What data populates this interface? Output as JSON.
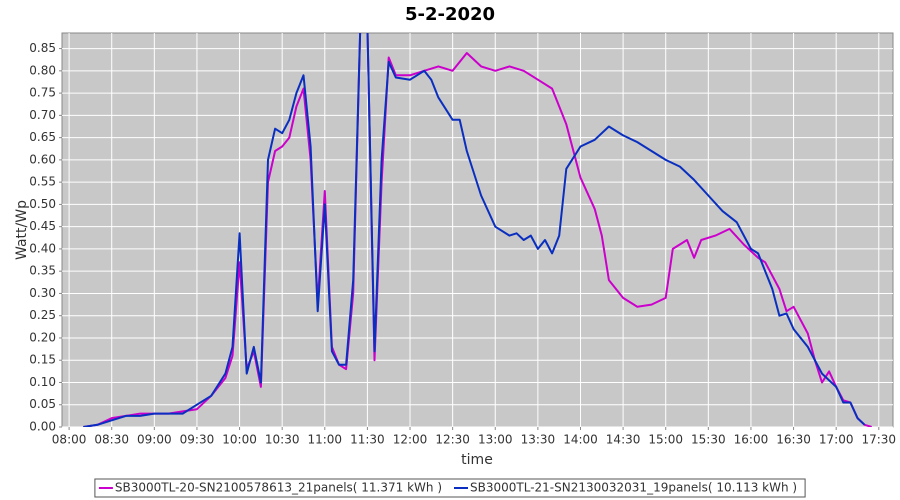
{
  "chart_data": {
    "type": "line",
    "title": "5-2-2020",
    "x_label": "time",
    "y_label": "Watt/Wp",
    "xlim": [
      "07:55",
      "17:40"
    ],
    "xticks": [
      "08:00",
      "08:30",
      "09:00",
      "09:30",
      "10:00",
      "10:30",
      "11:00",
      "11:30",
      "12:00",
      "12:30",
      "13:00",
      "13:30",
      "14:00",
      "14:30",
      "15:00",
      "15:30",
      "16:00",
      "16:30",
      "17:00",
      "17:30"
    ],
    "ylim": [
      0,
      0.885
    ],
    "yticks": [
      {
        "value": 0,
        "label": "0.00"
      },
      {
        "value": 0.05,
        "label": "0.05"
      },
      {
        "value": 0.1,
        "label": "0.10"
      },
      {
        "value": 0.15,
        "label": "0.15"
      },
      {
        "value": 0.2,
        "label": "0.20"
      },
      {
        "value": 0.25,
        "label": "0.25"
      },
      {
        "value": 0.3,
        "label": "0.30"
      },
      {
        "value": 0.35,
        "label": "0.35"
      },
      {
        "value": 0.4,
        "label": "0.40"
      },
      {
        "value": 0.45,
        "label": "0.45"
      },
      {
        "value": 0.5,
        "label": "0.50"
      },
      {
        "value": 0.55,
        "label": "0.55"
      },
      {
        "value": 0.6,
        "label": "0.60"
      },
      {
        "value": 0.65,
        "label": "0.65"
      },
      {
        "value": 0.7,
        "label": "0.70"
      },
      {
        "value": 0.75,
        "label": "0.75"
      },
      {
        "value": 0.8,
        "label": "0.80"
      },
      {
        "value": 0.85,
        "label": "0.85"
      }
    ],
    "grid": true,
    "legend": "bottom",
    "series": [
      {
        "name": "SB3000TL-20-SN2100578613_21panels( 11.371 kWh )",
        "color": "#cc00cc",
        "x": [
          "08:10",
          "08:20",
          "08:30",
          "08:40",
          "08:50",
          "09:00",
          "09:10",
          "09:20",
          "09:30",
          "09:40",
          "09:50",
          "09:55",
          "10:00",
          "10:05",
          "10:10",
          "10:15",
          "10:20",
          "10:25",
          "10:30",
          "10:35",
          "10:40",
          "10:45",
          "10:50",
          "10:55",
          "11:00",
          "11:05",
          "11:10",
          "11:15",
          "11:20",
          "11:25",
          "11:30",
          "11:35",
          "11:40",
          "11:45",
          "11:50",
          "12:00",
          "12:10",
          "12:20",
          "12:30",
          "12:40",
          "12:50",
          "13:00",
          "13:10",
          "13:20",
          "13:30",
          "13:40",
          "13:50",
          "14:00",
          "14:10",
          "14:15",
          "14:20",
          "14:30",
          "14:40",
          "14:50",
          "15:00",
          "15:05",
          "15:15",
          "15:20",
          "15:25",
          "15:35",
          "15:45",
          "15:55",
          "16:05",
          "16:10",
          "16:20",
          "16:25",
          "16:30",
          "16:40",
          "16:45",
          "16:50",
          "16:55",
          "17:00",
          "17:05",
          "17:10",
          "17:15",
          "17:20",
          "17:25"
        ],
        "values": [
          0,
          0.005,
          0.02,
          0.025,
          0.03,
          0.03,
          0.03,
          0.035,
          0.04,
          0.07,
          0.11,
          0.16,
          0.37,
          0.13,
          0.17,
          0.09,
          0.55,
          0.62,
          0.63,
          0.65,
          0.72,
          0.76,
          0.6,
          0.28,
          0.53,
          0.18,
          0.14,
          0.13,
          0.3,
          0.9,
          0.9,
          0.15,
          0.55,
          0.83,
          0.79,
          0.79,
          0.8,
          0.81,
          0.8,
          0.84,
          0.81,
          0.8,
          0.81,
          0.8,
          0.78,
          0.76,
          0.68,
          0.56,
          0.49,
          0.43,
          0.33,
          0.29,
          0.27,
          0.275,
          0.29,
          0.4,
          0.42,
          0.38,
          0.42,
          0.43,
          0.445,
          0.41,
          0.38,
          0.37,
          0.31,
          0.26,
          0.27,
          0.21,
          0.15,
          0.1,
          0.125,
          0.09,
          0.06,
          0.055,
          0.02,
          0.005,
          0
        ]
      },
      {
        "name": "SB3000TL-21-SN2130032031_19panels( 10.113 kWh )",
        "color": "#0a2fc0",
        "x": [
          "08:10",
          "08:20",
          "08:30",
          "08:40",
          "08:50",
          "09:00",
          "09:10",
          "09:20",
          "09:30",
          "09:40",
          "09:50",
          "09:55",
          "10:00",
          "10:05",
          "10:10",
          "10:15",
          "10:20",
          "10:25",
          "10:30",
          "10:35",
          "10:40",
          "10:45",
          "10:50",
          "10:55",
          "11:00",
          "11:05",
          "11:10",
          "11:15",
          "11:20",
          "11:25",
          "11:30",
          "11:35",
          "11:40",
          "11:45",
          "11:50",
          "12:00",
          "12:10",
          "12:15",
          "12:20",
          "12:30",
          "12:35",
          "12:40",
          "12:50",
          "13:00",
          "13:10",
          "13:15",
          "13:20",
          "13:25",
          "13:30",
          "13:35",
          "13:40",
          "13:45",
          "13:50",
          "14:00",
          "14:10",
          "14:20",
          "14:30",
          "14:40",
          "14:50",
          "15:00",
          "15:10",
          "15:20",
          "15:30",
          "15:40",
          "15:50",
          "16:00",
          "16:05",
          "16:10",
          "16:15",
          "16:20",
          "16:25",
          "16:30",
          "16:40",
          "16:50",
          "16:55",
          "17:00",
          "17:05",
          "17:10",
          "17:15",
          "17:20"
        ],
        "values": [
          0,
          0.005,
          0.015,
          0.025,
          0.025,
          0.03,
          0.03,
          0.03,
          0.05,
          0.07,
          0.12,
          0.18,
          0.435,
          0.12,
          0.18,
          0.1,
          0.6,
          0.67,
          0.66,
          0.69,
          0.75,
          0.79,
          0.63,
          0.26,
          0.5,
          0.17,
          0.14,
          0.14,
          0.33,
          0.9,
          0.9,
          0.17,
          0.6,
          0.82,
          0.785,
          0.78,
          0.8,
          0.78,
          0.74,
          0.69,
          0.69,
          0.62,
          0.52,
          0.45,
          0.43,
          0.435,
          0.42,
          0.43,
          0.4,
          0.42,
          0.39,
          0.43,
          0.58,
          0.63,
          0.645,
          0.675,
          0.655,
          0.64,
          0.62,
          0.6,
          0.585,
          0.555,
          0.52,
          0.485,
          0.46,
          0.4,
          0.39,
          0.35,
          0.31,
          0.25,
          0.255,
          0.22,
          0.18,
          0.12,
          0.105,
          0.09,
          0.055,
          0.055,
          0.02,
          0.005
        ]
      }
    ]
  }
}
